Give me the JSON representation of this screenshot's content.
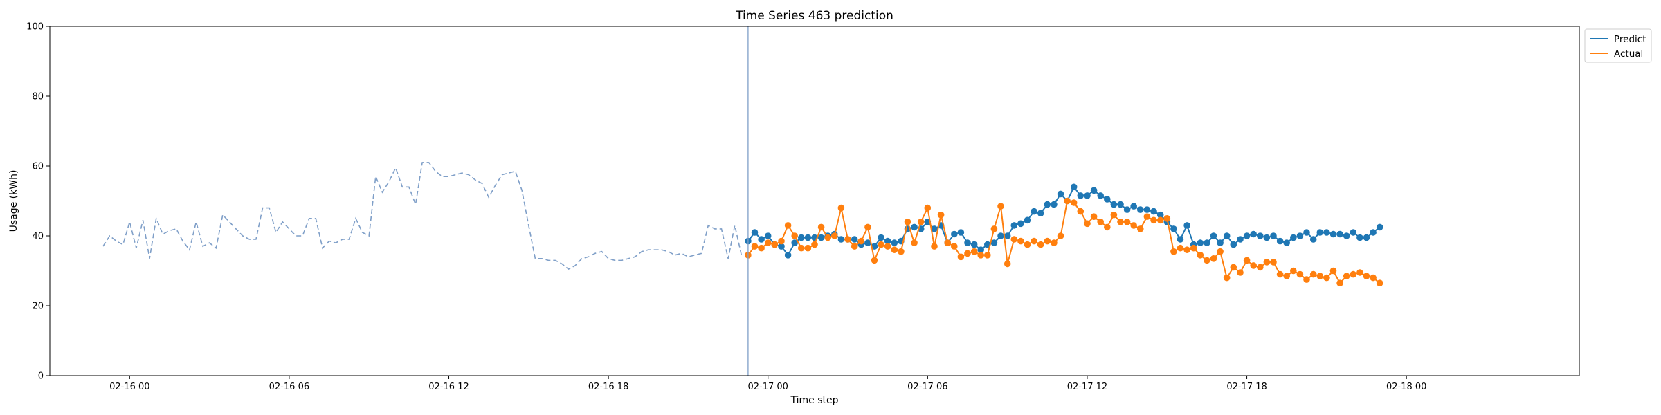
{
  "chart_data": {
    "type": "line",
    "title": "Time Series 463 prediction",
    "xlabel": "Time step",
    "ylabel": "Usage (kWh)",
    "ylim": [
      0,
      100
    ],
    "xlim": [
      -3.0,
      54.5
    ],
    "x_unit": "hours since 02-16 00:00",
    "yticks": [
      0,
      20,
      40,
      60,
      80,
      100
    ],
    "xticks": [
      {
        "x": 0,
        "label": "02-16 00"
      },
      {
        "x": 6,
        "label": "02-16 06"
      },
      {
        "x": 12,
        "label": "02-16 12"
      },
      {
        "x": 18,
        "label": "02-16 18"
      },
      {
        "x": 24,
        "label": "02-17 00"
      },
      {
        "x": 30,
        "label": "02-17 06"
      },
      {
        "x": 36,
        "label": "02-17 12"
      },
      {
        "x": 42,
        "label": "02-17 18"
      },
      {
        "x": 48,
        "label": "02-18 00"
      }
    ],
    "forecast_start_x": 23.25,
    "legend": {
      "position": "upper-right-outside",
      "entries": [
        "Predict",
        "Actual"
      ]
    },
    "history": {
      "color": "#7f9fc8",
      "style": "dashed",
      "x0": -1.0,
      "step": 0.25,
      "values": [
        37,
        40,
        38.5,
        37.5,
        44,
        36.5,
        44.5,
        33.5,
        45,
        40.5,
        41.5,
        42,
        38.5,
        36,
        44,
        37,
        38,
        36.5,
        46,
        44,
        42,
        40,
        39,
        39,
        48,
        48,
        41,
        44,
        42,
        40,
        40,
        45,
        45,
        36.5,
        38.5,
        38,
        39,
        39,
        45,
        41,
        40,
        57,
        52.5,
        55.5,
        59.5,
        54,
        54,
        49,
        61,
        61,
        58.5,
        57,
        57,
        57.5,
        58,
        57.5,
        56,
        55,
        51,
        54.5,
        57.5,
        58,
        58.5,
        53,
        43,
        33.5,
        33.5,
        33,
        33,
        32,
        30.5,
        31.5,
        33.5,
        34,
        35,
        35.5,
        33.5,
        33,
        33,
        33.5,
        34,
        35.5,
        36,
        36,
        36,
        35.5,
        34.5,
        35,
        34,
        34.5,
        35,
        43,
        42,
        42,
        33.5,
        43,
        34.5
      ]
    },
    "series": [
      {
        "name": "Predict",
        "color": "#1f77b4",
        "x0": 23.25,
        "step": 0.25,
        "values": [
          38.5,
          41,
          39,
          40,
          37.5,
          37,
          34.5,
          38,
          39.5,
          39.5,
          39.5,
          39.5,
          40,
          40.5,
          39,
          39,
          39,
          37.5,
          38,
          37,
          39.5,
          38.5,
          38,
          38.5,
          42,
          42.5,
          42,
          44,
          42,
          43,
          38,
          40.5,
          41,
          38,
          37.5,
          36,
          37.5,
          38,
          40,
          40,
          43,
          43.5,
          44.5,
          47,
          46.5,
          49,
          49,
          52,
          50,
          54,
          51.5,
          51.5,
          53,
          51.5,
          50.5,
          49,
          49,
          47.5,
          48.5,
          47.5,
          47.5,
          47,
          46,
          44,
          42,
          39,
          43,
          37.5,
          38,
          38,
          40,
          38,
          40,
          37.5,
          39,
          40,
          40.5,
          40,
          39.5,
          40,
          38.5,
          38,
          39.5,
          40,
          41,
          39,
          41,
          41,
          40.5,
          40.5,
          40,
          41,
          39.5,
          39.5,
          41,
          42.5
        ]
      },
      {
        "name": "Actual",
        "color": "#ff7f0e",
        "x0": 23.25,
        "step": 0.25,
        "values": [
          34.5,
          37,
          36.5,
          38,
          37.5,
          38.5,
          43,
          40,
          36.5,
          36.5,
          37.5,
          42.5,
          39.5,
          40,
          48,
          39,
          37,
          38.5,
          42.5,
          33,
          37.5,
          37,
          36,
          35.5,
          44,
          38,
          44,
          48,
          37,
          46,
          38,
          37,
          34,
          35,
          35.5,
          34.5,
          34.5,
          42,
          48.5,
          32,
          39,
          38.5,
          37.5,
          38.5,
          37.5,
          38.5,
          38,
          40,
          50,
          49.5,
          47,
          43.5,
          45.5,
          44,
          42.5,
          46,
          44,
          44,
          43,
          42,
          45.5,
          44.5,
          44.5,
          45,
          35.5,
          36.5,
          36,
          36.5,
          34.5,
          33,
          33.5,
          35.5,
          28,
          31,
          29.5,
          33,
          31.5,
          31,
          32.5,
          32.5,
          29,
          28.5,
          30,
          29,
          27.5,
          29,
          28.5,
          28,
          30,
          26.5,
          28.5,
          29,
          29.5,
          28.5,
          28,
          26.5
        ]
      }
    ]
  }
}
